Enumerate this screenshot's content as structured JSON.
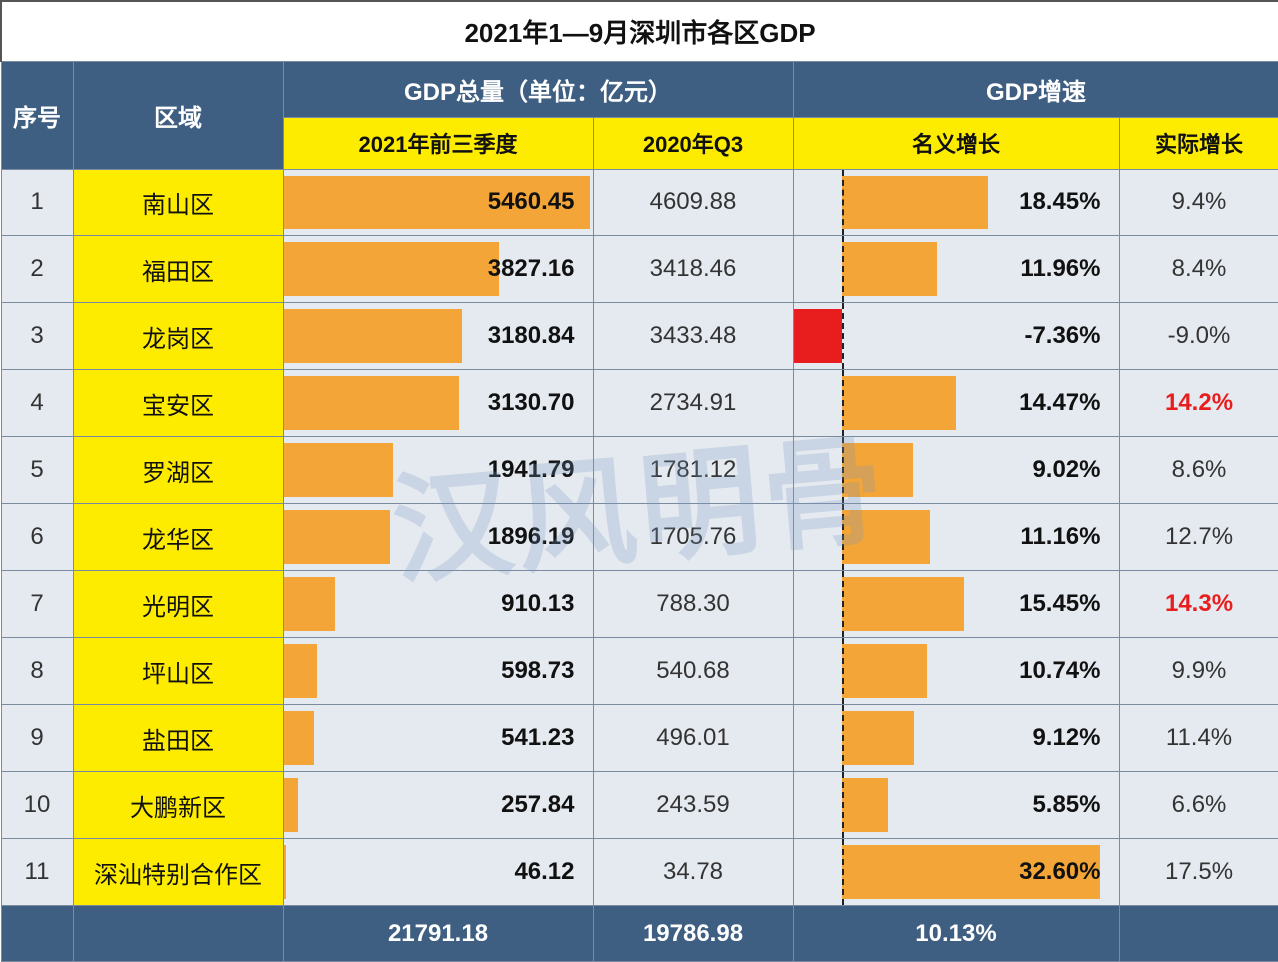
{
  "title": "2021年1—9月深圳市各区GDP",
  "headers": {
    "rank": "序号",
    "region": "区域",
    "gdp_total_group": "GDP总量（单位：亿元）",
    "gdp_growth_group": "GDP增速",
    "gdp_2021q3": "2021年前三季度",
    "gdp_2020q3": "2020年Q3",
    "nominal_growth": "名义增长",
    "real_growth": "实际增长"
  },
  "watermark": "汉风明骨",
  "style": {
    "header_bg": "#3e5f82",
    "header_fg": "#ffffff",
    "subheader_bg": "#fdec00",
    "subheader_fg": "#111111",
    "cell_bg": "#e5eaf0",
    "region_bg": "#fdec00",
    "bar_color": "#f4a537",
    "neg_bar_color": "#e81e1e",
    "highlight_text": "#e81e1e",
    "border_color": "#7a8ba0",
    "title_fontsize": 26,
    "header_fontsize": 24,
    "cell_fontsize": 24,
    "gdp_bar_max": 5500,
    "nominal_bar_max_pct": 35,
    "nominal_zero_position_pct": 15
  },
  "columns": {
    "rank_w": 72,
    "region_w": 210,
    "gdp21_w": 310,
    "gdp20_w": 200,
    "nom_w": 326,
    "real_w": 160
  },
  "rows": [
    {
      "rank": 1,
      "region": "南山区",
      "gdp_2021": 5460.45,
      "gdp_2021_label": "5460.45",
      "gdp_2020_label": "4609.88",
      "nominal": 18.45,
      "nominal_label": "18.45%",
      "real_label": "9.4%",
      "real_highlight": false
    },
    {
      "rank": 2,
      "region": "福田区",
      "gdp_2021": 3827.16,
      "gdp_2021_label": "3827.16",
      "gdp_2020_label": "3418.46",
      "nominal": 11.96,
      "nominal_label": "11.96%",
      "real_label": "8.4%",
      "real_highlight": false
    },
    {
      "rank": 3,
      "region": "龙岗区",
      "gdp_2021": 3180.84,
      "gdp_2021_label": "3180.84",
      "gdp_2020_label": "3433.48",
      "nominal": -7.36,
      "nominal_label": "-7.36%",
      "real_label": "-9.0%",
      "real_highlight": false
    },
    {
      "rank": 4,
      "region": "宝安区",
      "gdp_2021": 3130.7,
      "gdp_2021_label": "3130.70",
      "gdp_2020_label": "2734.91",
      "nominal": 14.47,
      "nominal_label": "14.47%",
      "real_label": "14.2%",
      "real_highlight": true
    },
    {
      "rank": 5,
      "region": "罗湖区",
      "gdp_2021": 1941.79,
      "gdp_2021_label": "1941.79",
      "gdp_2020_label": "1781.12",
      "nominal": 9.02,
      "nominal_label": "9.02%",
      "real_label": "8.6%",
      "real_highlight": false
    },
    {
      "rank": 6,
      "region": "龙华区",
      "gdp_2021": 1896.19,
      "gdp_2021_label": "1896.19",
      "gdp_2020_label": "1705.76",
      "nominal": 11.16,
      "nominal_label": "11.16%",
      "real_label": "12.7%",
      "real_highlight": false
    },
    {
      "rank": 7,
      "region": "光明区",
      "gdp_2021": 910.13,
      "gdp_2021_label": "910.13",
      "gdp_2020_label": "788.30",
      "nominal": 15.45,
      "nominal_label": "15.45%",
      "real_label": "14.3%",
      "real_highlight": true
    },
    {
      "rank": 8,
      "region": "坪山区",
      "gdp_2021": 598.73,
      "gdp_2021_label": "598.73",
      "gdp_2020_label": "540.68",
      "nominal": 10.74,
      "nominal_label": "10.74%",
      "real_label": "9.9%",
      "real_highlight": false
    },
    {
      "rank": 9,
      "region": "盐田区",
      "gdp_2021": 541.23,
      "gdp_2021_label": "541.23",
      "gdp_2020_label": "496.01",
      "nominal": 9.12,
      "nominal_label": "9.12%",
      "real_label": "11.4%",
      "real_highlight": false
    },
    {
      "rank": 10,
      "region": "大鹏新区",
      "gdp_2021": 257.84,
      "gdp_2021_label": "257.84",
      "gdp_2020_label": "243.59",
      "nominal": 5.85,
      "nominal_label": "5.85%",
      "real_label": "6.6%",
      "real_highlight": false
    },
    {
      "rank": 11,
      "region": "深汕特别合作区",
      "gdp_2021": 46.12,
      "gdp_2021_label": "46.12",
      "gdp_2020_label": "34.78",
      "nominal": 32.6,
      "nominal_label": "32.60%",
      "real_label": "17.5%",
      "real_highlight": false
    }
  ],
  "totals": {
    "gdp_2021_label": "21791.18",
    "gdp_2020_label": "19786.98",
    "nominal_label": "10.13%"
  }
}
